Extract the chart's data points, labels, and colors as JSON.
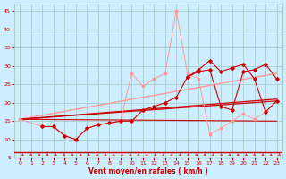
{
  "xlabel": "Vent moyen/en rafales ( km/h )",
  "bg_color": "#cceeff",
  "grid_color": "#aacccc",
  "xlim": [
    -0.5,
    23.5
  ],
  "ylim": [
    5,
    47
  ],
  "yticks": [
    5,
    10,
    15,
    20,
    25,
    30,
    35,
    40,
    45
  ],
  "xticks": [
    0,
    1,
    2,
    3,
    4,
    5,
    6,
    7,
    8,
    9,
    10,
    11,
    12,
    13,
    14,
    15,
    16,
    17,
    18,
    19,
    20,
    21,
    22,
    23
  ],
  "trend1_x": [
    0,
    23
  ],
  "trend1_y": [
    15.5,
    21.0
  ],
  "trend2_x": [
    0,
    23
  ],
  "trend2_y": [
    15.5,
    28.0
  ],
  "trend3_x": [
    0,
    23
  ],
  "trend3_y": [
    15.5,
    15.0
  ],
  "trend4_x": [
    0,
    23
  ],
  "trend4_y": [
    15.5,
    20.5
  ],
  "light_line_x": [
    0,
    2,
    3,
    4,
    5,
    6,
    7,
    8,
    9,
    10,
    11,
    12,
    13,
    14,
    15,
    16,
    17,
    18,
    19,
    20,
    21,
    22,
    23
  ],
  "light_line_y": [
    15.5,
    13.5,
    13.5,
    11.0,
    10.0,
    13.0,
    14.0,
    14.5,
    15.0,
    28.0,
    24.5,
    26.5,
    28.0,
    45.0,
    28.0,
    26.5,
    11.5,
    13.0,
    15.0,
    17.0,
    15.5,
    17.5,
    20.5
  ],
  "dark_line_x": [
    2,
    3,
    4,
    5,
    6,
    7,
    8,
    9,
    10,
    11,
    12,
    13,
    14,
    15,
    16,
    17,
    18,
    19,
    20,
    21,
    22,
    23
  ],
  "dark_line_y": [
    13.5,
    13.5,
    11.0,
    10.0,
    13.0,
    14.0,
    14.5,
    15.0,
    15.0,
    18.0,
    19.0,
    20.0,
    21.5,
    27.0,
    28.5,
    29.0,
    19.0,
    18.0,
    28.5,
    29.0,
    30.5,
    26.5
  ],
  "dark_line2_x": [
    15,
    16,
    17,
    18,
    19,
    20,
    21,
    22,
    23
  ],
  "dark_line2_y": [
    27.0,
    29.0,
    31.5,
    28.5,
    29.5,
    30.5,
    26.5,
    17.5,
    20.5
  ],
  "color_dark": "#cc0000",
  "color_light": "#ff9999",
  "color_medium": "#ee4444"
}
